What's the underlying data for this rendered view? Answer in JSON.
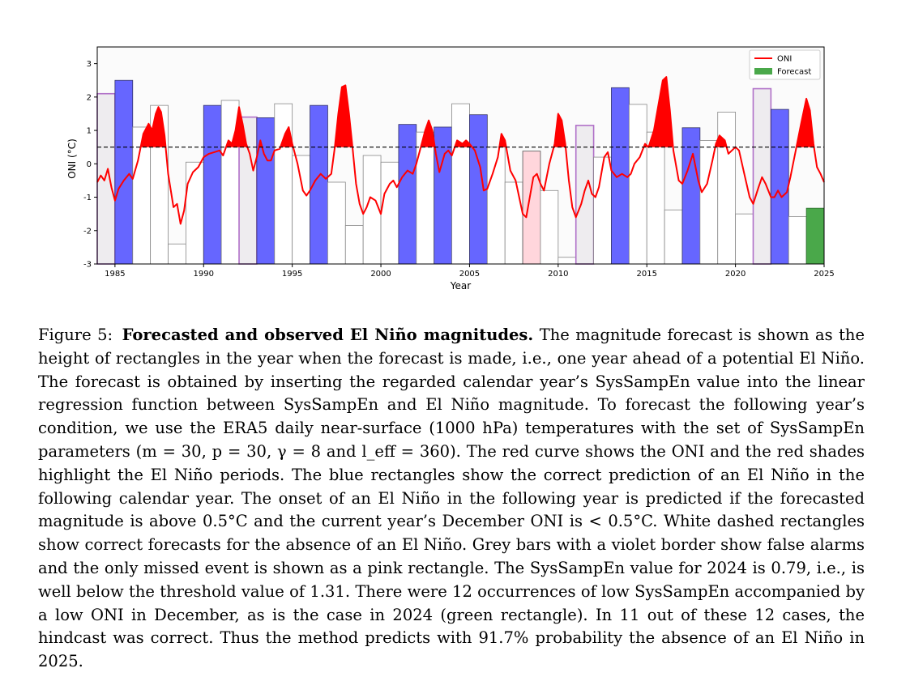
{
  "chart_data": {
    "type": "bar",
    "xlabel": "Year",
    "ylabel": "ONI (°C)",
    "xlim": [
      1984,
      2025
    ],
    "ylim": [
      -3,
      3.5
    ],
    "yticks": [
      -3,
      -2,
      -1,
      0,
      1,
      2,
      3
    ],
    "xticks": [
      1985,
      1990,
      1995,
      2000,
      2005,
      2010,
      2015,
      2020,
      2025
    ],
    "threshold": 0.5,
    "threshold_style": "dashed",
    "grid": false,
    "legend_position": "top-right",
    "legend": [
      {
        "label": "ONI",
        "kind": "line",
        "color": "#ff0000"
      },
      {
        "label": "Forecast",
        "kind": "patch",
        "color": "#4aa84a"
      }
    ],
    "colors": {
      "oni": "#ff0000",
      "correct_el_nino": "#6666ff",
      "correct_absence": "#ffffff",
      "false_alarm_fill": "#eeecef",
      "false_alarm_border": "#b070c8",
      "missed": "#ffd6dc",
      "forecast_2024": "#4aa84a",
      "el_nino_shade": "#ff0000"
    },
    "bars": [
      {
        "year": 1984,
        "value": 2.1,
        "kind": "false_alarm"
      },
      {
        "year": 1985,
        "value": 2.5,
        "kind": "correct_el_nino"
      },
      {
        "year": 1986,
        "value": 1.1,
        "kind": "correct_absence"
      },
      {
        "year": 1987,
        "value": 1.75,
        "kind": "correct_absence"
      },
      {
        "year": 1988,
        "value": -2.4,
        "kind": "correct_absence"
      },
      {
        "year": 1989,
        "value": 0.05,
        "kind": "correct_absence"
      },
      {
        "year": 1990,
        "value": 1.75,
        "kind": "correct_el_nino"
      },
      {
        "year": 1991,
        "value": 1.9,
        "kind": "correct_absence"
      },
      {
        "year": 1992,
        "value": 1.4,
        "kind": "false_alarm"
      },
      {
        "year": 1993,
        "value": 1.38,
        "kind": "correct_el_nino"
      },
      {
        "year": 1994,
        "value": 1.8,
        "kind": "correct_absence"
      },
      {
        "year": 1995,
        "value": 0.25,
        "kind": "correct_absence"
      },
      {
        "year": 1996,
        "value": 1.75,
        "kind": "correct_el_nino"
      },
      {
        "year": 1997,
        "value": -0.55,
        "kind": "correct_absence"
      },
      {
        "year": 1998,
        "value": -1.85,
        "kind": "correct_absence"
      },
      {
        "year": 1999,
        "value": 0.25,
        "kind": "correct_absence"
      },
      {
        "year": 2000,
        "value": 0.05,
        "kind": "correct_absence"
      },
      {
        "year": 2001,
        "value": 1.18,
        "kind": "correct_el_nino"
      },
      {
        "year": 2002,
        "value": 0.95,
        "kind": "correct_absence"
      },
      {
        "year": 2003,
        "value": 1.1,
        "kind": "correct_el_nino"
      },
      {
        "year": 2004,
        "value": 1.8,
        "kind": "correct_absence"
      },
      {
        "year": 2005,
        "value": 1.47,
        "kind": "correct_el_nino"
      },
      {
        "year": 2006,
        "value": 0.5,
        "kind": "correct_absence"
      },
      {
        "year": 2007,
        "value": -0.55,
        "kind": "correct_absence"
      },
      {
        "year": 2008,
        "value": 0.38,
        "kind": "missed"
      },
      {
        "year": 2009,
        "value": -0.8,
        "kind": "correct_absence"
      },
      {
        "year": 2010,
        "value": -2.8,
        "kind": "correct_absence"
      },
      {
        "year": 2011,
        "value": 1.15,
        "kind": "false_alarm"
      },
      {
        "year": 2012,
        "value": 0.2,
        "kind": "correct_absence"
      },
      {
        "year": 2013,
        "value": 2.28,
        "kind": "correct_el_nino"
      },
      {
        "year": 2014,
        "value": 1.78,
        "kind": "correct_absence"
      },
      {
        "year": 2015,
        "value": 0.95,
        "kind": "correct_absence"
      },
      {
        "year": 2016,
        "value": -1.38,
        "kind": "correct_absence"
      },
      {
        "year": 2017,
        "value": 1.08,
        "kind": "correct_el_nino"
      },
      {
        "year": 2018,
        "value": 0.7,
        "kind": "correct_absence"
      },
      {
        "year": 2019,
        "value": 1.55,
        "kind": "correct_absence"
      },
      {
        "year": 2020,
        "value": -1.5,
        "kind": "correct_absence"
      },
      {
        "year": 2021,
        "value": 2.25,
        "kind": "false_alarm"
      },
      {
        "year": 2022,
        "value": 1.63,
        "kind": "correct_el_nino"
      },
      {
        "year": 2023,
        "value": -1.58,
        "kind": "correct_absence"
      },
      {
        "year": 2024,
        "value": -1.33,
        "kind": "forecast_2024"
      }
    ],
    "oni_series": [
      [
        1984.0,
        -0.55
      ],
      [
        1984.2,
        -0.35
      ],
      [
        1984.4,
        -0.5
      ],
      [
        1984.6,
        -0.15
      ],
      [
        1984.8,
        -0.7
      ],
      [
        1985.0,
        -1.1
      ],
      [
        1985.2,
        -0.75
      ],
      [
        1985.5,
        -0.5
      ],
      [
        1985.8,
        -0.3
      ],
      [
        1986.0,
        -0.45
      ],
      [
        1986.3,
        0.1
      ],
      [
        1986.6,
        0.9
      ],
      [
        1986.9,
        1.2
      ],
      [
        1987.1,
        1.0
      ],
      [
        1987.3,
        1.5
      ],
      [
        1987.45,
        1.7
      ],
      [
        1987.6,
        1.55
      ],
      [
        1987.8,
        0.85
      ],
      [
        1988.0,
        -0.3
      ],
      [
        1988.3,
        -1.3
      ],
      [
        1988.5,
        -1.2
      ],
      [
        1988.7,
        -1.8
      ],
      [
        1988.9,
        -1.4
      ],
      [
        1989.1,
        -0.6
      ],
      [
        1989.4,
        -0.25
      ],
      [
        1989.7,
        -0.1
      ],
      [
        1990.0,
        0.2
      ],
      [
        1990.3,
        0.3
      ],
      [
        1990.6,
        0.35
      ],
      [
        1990.9,
        0.4
      ],
      [
        1991.1,
        0.25
      ],
      [
        1991.4,
        0.7
      ],
      [
        1991.6,
        0.6
      ],
      [
        1991.8,
        1.0
      ],
      [
        1992.0,
        1.7
      ],
      [
        1992.2,
        1.2
      ],
      [
        1992.4,
        0.6
      ],
      [
        1992.6,
        0.3
      ],
      [
        1992.8,
        -0.2
      ],
      [
        1993.0,
        0.2
      ],
      [
        1993.2,
        0.7
      ],
      [
        1993.4,
        0.3
      ],
      [
        1993.6,
        0.1
      ],
      [
        1993.8,
        0.1
      ],
      [
        1994.0,
        0.4
      ],
      [
        1994.3,
        0.45
      ],
      [
        1994.6,
        0.9
      ],
      [
        1994.8,
        1.1
      ],
      [
        1995.0,
        0.6
      ],
      [
        1995.3,
        0.0
      ],
      [
        1995.6,
        -0.8
      ],
      [
        1995.8,
        -0.95
      ],
      [
        1996.0,
        -0.8
      ],
      [
        1996.3,
        -0.5
      ],
      [
        1996.6,
        -0.3
      ],
      [
        1996.9,
        -0.45
      ],
      [
        1997.2,
        -0.3
      ],
      [
        1997.4,
        0.5
      ],
      [
        1997.6,
        1.5
      ],
      [
        1997.8,
        2.3
      ],
      [
        1998.0,
        2.35
      ],
      [
        1998.2,
        1.5
      ],
      [
        1998.4,
        0.5
      ],
      [
        1998.6,
        -0.6
      ],
      [
        1998.8,
        -1.2
      ],
      [
        1999.0,
        -1.5
      ],
      [
        1999.2,
        -1.3
      ],
      [
        1999.4,
        -1.0
      ],
      [
        1999.7,
        -1.1
      ],
      [
        2000.0,
        -1.5
      ],
      [
        2000.2,
        -0.9
      ],
      [
        2000.5,
        -0.6
      ],
      [
        2000.7,
        -0.5
      ],
      [
        2000.9,
        -0.7
      ],
      [
        2001.2,
        -0.4
      ],
      [
        2001.5,
        -0.2
      ],
      [
        2001.8,
        -0.3
      ],
      [
        2002.0,
        0.0
      ],
      [
        2002.3,
        0.6
      ],
      [
        2002.5,
        1.0
      ],
      [
        2002.7,
        1.3
      ],
      [
        2002.9,
        1.0
      ],
      [
        2003.1,
        0.3
      ],
      [
        2003.3,
        -0.25
      ],
      [
        2003.6,
        0.3
      ],
      [
        2003.8,
        0.4
      ],
      [
        2004.0,
        0.25
      ],
      [
        2004.3,
        0.7
      ],
      [
        2004.6,
        0.6
      ],
      [
        2004.8,
        0.7
      ],
      [
        2005.0,
        0.6
      ],
      [
        2005.3,
        0.4
      ],
      [
        2005.6,
        -0.1
      ],
      [
        2005.8,
        -0.8
      ],
      [
        2006.0,
        -0.75
      ],
      [
        2006.3,
        -0.3
      ],
      [
        2006.6,
        0.2
      ],
      [
        2006.8,
        0.9
      ],
      [
        2007.0,
        0.7
      ],
      [
        2007.3,
        -0.2
      ],
      [
        2007.6,
        -0.5
      ],
      [
        2007.8,
        -1.0
      ],
      [
        2008.0,
        -1.5
      ],
      [
        2008.2,
        -1.6
      ],
      [
        2008.4,
        -1.0
      ],
      [
        2008.6,
        -0.4
      ],
      [
        2008.8,
        -0.3
      ],
      [
        2009.0,
        -0.6
      ],
      [
        2009.2,
        -0.8
      ],
      [
        2009.5,
        0.0
      ],
      [
        2009.8,
        0.6
      ],
      [
        2010.0,
        1.5
      ],
      [
        2010.2,
        1.3
      ],
      [
        2010.4,
        0.6
      ],
      [
        2010.6,
        -0.5
      ],
      [
        2010.8,
        -1.3
      ],
      [
        2011.0,
        -1.6
      ],
      [
        2011.3,
        -1.2
      ],
      [
        2011.5,
        -0.8
      ],
      [
        2011.7,
        -0.5
      ],
      [
        2011.9,
        -0.9
      ],
      [
        2012.1,
        -1.0
      ],
      [
        2012.3,
        -0.7
      ],
      [
        2012.6,
        0.2
      ],
      [
        2012.8,
        0.35
      ],
      [
        2013.0,
        -0.2
      ],
      [
        2013.3,
        -0.4
      ],
      [
        2013.6,
        -0.3
      ],
      [
        2013.9,
        -0.4
      ],
      [
        2014.1,
        -0.3
      ],
      [
        2014.3,
        0.0
      ],
      [
        2014.6,
        0.2
      ],
      [
        2014.9,
        0.6
      ],
      [
        2015.1,
        0.5
      ],
      [
        2015.4,
        1.0
      ],
      [
        2015.7,
        1.9
      ],
      [
        2015.9,
        2.5
      ],
      [
        2016.1,
        2.6
      ],
      [
        2016.3,
        1.6
      ],
      [
        2016.5,
        0.4
      ],
      [
        2016.8,
        -0.5
      ],
      [
        2017.0,
        -0.6
      ],
      [
        2017.3,
        -0.2
      ],
      [
        2017.6,
        0.3
      ],
      [
        2017.9,
        -0.5
      ],
      [
        2018.1,
        -0.85
      ],
      [
        2018.4,
        -0.6
      ],
      [
        2018.7,
        0.1
      ],
      [
        2018.9,
        0.6
      ],
      [
        2019.1,
        0.85
      ],
      [
        2019.4,
        0.7
      ],
      [
        2019.6,
        0.3
      ],
      [
        2019.8,
        0.4
      ],
      [
        2020.0,
        0.5
      ],
      [
        2020.2,
        0.4
      ],
      [
        2020.5,
        -0.3
      ],
      [
        2020.8,
        -1.0
      ],
      [
        2021.0,
        -1.2
      ],
      [
        2021.3,
        -0.7
      ],
      [
        2021.5,
        -0.4
      ],
      [
        2021.7,
        -0.6
      ],
      [
        2022.0,
        -1.0
      ],
      [
        2022.2,
        -1.0
      ],
      [
        2022.4,
        -0.8
      ],
      [
        2022.6,
        -1.0
      ],
      [
        2022.9,
        -0.85
      ],
      [
        2023.1,
        -0.4
      ],
      [
        2023.4,
        0.4
      ],
      [
        2023.7,
        1.2
      ],
      [
        2024.0,
        1.95
      ],
      [
        2024.2,
        1.6
      ],
      [
        2024.4,
        0.6
      ],
      [
        2024.6,
        -0.1
      ],
      [
        2024.8,
        -0.3
      ],
      [
        2025.0,
        -0.55
      ]
    ]
  },
  "caption": {
    "label": "Figure 5:",
    "bold": "Forecasted and observed El Niño magnitudes.",
    "text": "The magnitude forecast is shown as the height of rectangles in the year when the forecast is made, i.e., one year ahead of a potential El Niño. The forecast is obtained by inserting the regarded calendar year’s SysSampEn value into the linear regression function between SysSampEn and El Niño magnitude. To forecast the following year’s condition, we use the ERA5 daily near-surface (1000 hPa) temperatures with the set of SysSampEn parameters (m = 30, p = 30, γ = 8 and l_eff = 360). The red curve shows the ONI and the red shades highlight the El Niño periods. The blue rectangles show the correct prediction of an El Niño in the following calendar year. The onset of an El Niño in the following year is predicted if the forecasted magnitude is above 0.5°C and the current year’s December ONI is < 0.5°C. White dashed rectangles show correct forecasts for the absence of an El Niño. Grey bars with a violet border show false alarms and the only missed event is shown as a pink rectangle. The SysSampEn value for 2024 is 0.79, i.e., is well below the threshold value of 1.31. There were 12 occurrences of low SysSampEn accompanied by a low ONI in December, as is the case in 2024 (green rectangle). In 11 out of these 12 cases, the hindcast was correct. Thus the method predicts with 91.7% probability the absence of an El Niño in 2025."
  }
}
